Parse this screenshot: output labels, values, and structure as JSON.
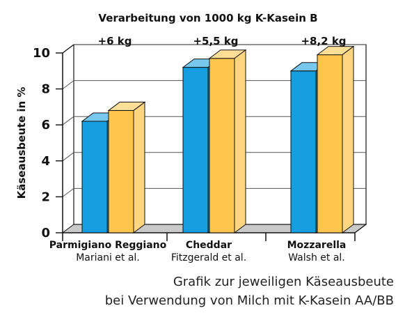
{
  "chart_data": {
    "type": "bar",
    "title": "Verarbeitung von 1000 kg K-Kasein B",
    "ylabel": "Käseausbeute in %",
    "ylim": [
      0,
      10
    ],
    "yticks": [
      "0",
      "2",
      "4",
      "6",
      "8",
      "10"
    ],
    "grid": true,
    "categories": [
      {
        "label": "Parmigiano Reggiano",
        "sublabel": "Mariani et al.",
        "difference_label": "+6 kg"
      },
      {
        "label": "Cheddar",
        "sublabel": "Fitzgerald et al.",
        "difference_label": "+5,5 kg"
      },
      {
        "label": "Mozzarella",
        "sublabel": "Walsh et al.",
        "difference_label": "+8,2 kg"
      }
    ],
    "series": [
      {
        "color": "#169fe0",
        "values": [
          6.2,
          9.2,
          9.0
        ]
      },
      {
        "color": "#ffc64d",
        "values": [
          6.8,
          9.7,
          9.9
        ]
      }
    ],
    "caption_lines": [
      "Grafik zur jeweiligen Käseausbeute",
      "bei Verwendung von Milch mit K-Kasein AA/BB"
    ],
    "colors": {
      "blue": "#169fe0",
      "yellow": "#ffc64d",
      "floor": "#c9c9c9",
      "axis": "#111111"
    }
  }
}
